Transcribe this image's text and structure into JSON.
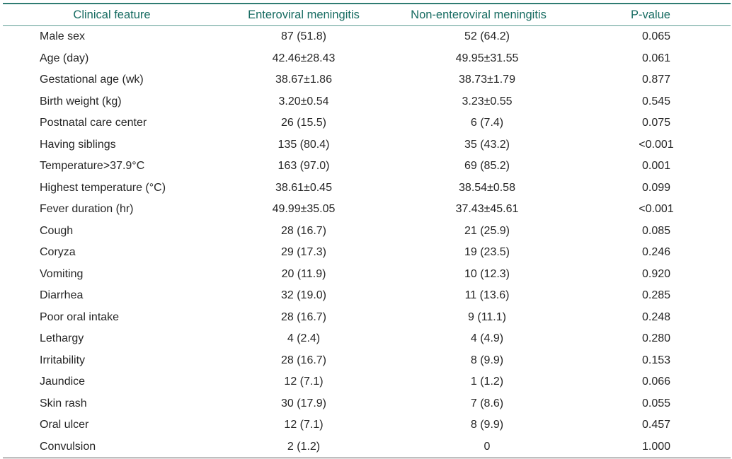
{
  "table": {
    "headers": {
      "feature": "Clinical feature",
      "enteroviral": "Enteroviral meningitis",
      "non_enteroviral": "Non-enteroviral meningitis",
      "p_value": "P-value"
    },
    "rows": [
      {
        "feature": "Male sex",
        "enteroviral": "87 (51.8)",
        "non_enteroviral": "52 (64.2)",
        "p_value": "0.065"
      },
      {
        "feature": "Age (day)",
        "enteroviral": "42.46±28.43",
        "non_enteroviral": "49.95±31.55",
        "p_value": "0.061"
      },
      {
        "feature": "Gestational age (wk)",
        "enteroviral": "38.67±1.86",
        "non_enteroviral": "38.73±1.79",
        "p_value": "0.877"
      },
      {
        "feature": "Birth weight (kg)",
        "enteroviral": "3.20±0.54",
        "non_enteroviral": "3.23±0.55",
        "p_value": "0.545"
      },
      {
        "feature": "Postnatal care center",
        "enteroviral": "26 (15.5)",
        "non_enteroviral": "6 (7.4)",
        "p_value": "0.075"
      },
      {
        "feature": "Having siblings",
        "enteroviral": "135 (80.4)",
        "non_enteroviral": "35 (43.2)",
        "p_value": "<0.001"
      },
      {
        "feature": "Temperature>37.9°C",
        "enteroviral": "163 (97.0)",
        "non_enteroviral": "69 (85.2)",
        "p_value": "0.001"
      },
      {
        "feature": "Highest temperature (°C)",
        "enteroviral": "38.61±0.45",
        "non_enteroviral": "38.54±0.58",
        "p_value": "0.099"
      },
      {
        "feature": "Fever duration (hr)",
        "enteroviral": "49.99±35.05",
        "non_enteroviral": "37.43±45.61",
        "p_value": "<0.001"
      },
      {
        "feature": "Cough",
        "enteroviral": "28 (16.7)",
        "non_enteroviral": "21 (25.9)",
        "p_value": "0.085"
      },
      {
        "feature": "Coryza",
        "enteroviral": "29 (17.3)",
        "non_enteroviral": "19 (23.5)",
        "p_value": "0.246"
      },
      {
        "feature": "Vomiting",
        "enteroviral": "20 (11.9)",
        "non_enteroviral": "10 (12.3)",
        "p_value": "0.920"
      },
      {
        "feature": "Diarrhea",
        "enteroviral": "32 (19.0)",
        "non_enteroviral": "11 (13.6)",
        "p_value": "0.285"
      },
      {
        "feature": "Poor oral intake",
        "enteroviral": "28 (16.7)",
        "non_enteroviral": "9 (11.1)",
        "p_value": "0.248"
      },
      {
        "feature": "Lethargy",
        "enteroviral": "4 (2.4)",
        "non_enteroviral": "4 (4.9)",
        "p_value": "0.280"
      },
      {
        "feature": "Irritability",
        "enteroviral": "28 (16.7)",
        "non_enteroviral": "8 (9.9)",
        "p_value": "0.153"
      },
      {
        "feature": "Jaundice",
        "enteroviral": "12 (7.1)",
        "non_enteroviral": "1 (1.2)",
        "p_value": "0.066"
      },
      {
        "feature": "Skin rash",
        "enteroviral": "30 (17.9)",
        "non_enteroviral": "7 (8.6)",
        "p_value": "0.055"
      },
      {
        "feature": "Oral ulcer",
        "enteroviral": "12 (7.1)",
        "non_enteroviral": "8 (9.9)",
        "p_value": "0.457"
      },
      {
        "feature": "Convulsion",
        "enteroviral": "2 (1.2)",
        "non_enteroviral": "0",
        "p_value": "1.000"
      }
    ],
    "colors": {
      "header_text": "#166b61",
      "top_rule": "#2f7c72",
      "header_rule": "#5a9a92",
      "bottom_rule": "#555555"
    }
  }
}
